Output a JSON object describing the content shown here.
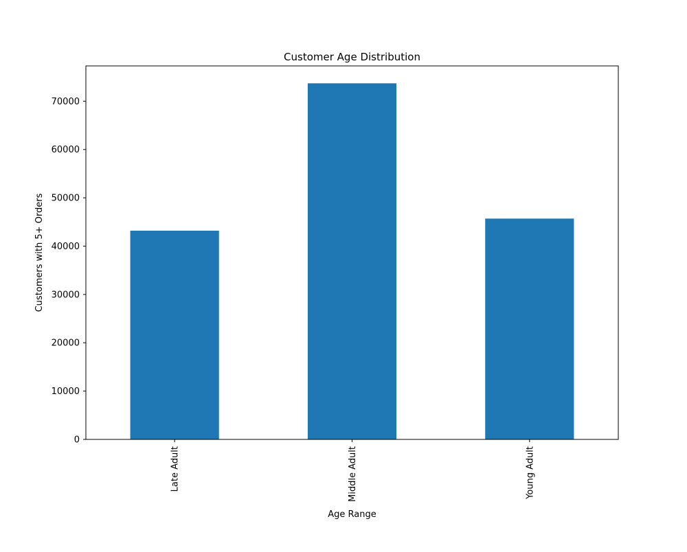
{
  "chart_data": {
    "type": "bar",
    "title": "Customer Age Distribution",
    "xlabel": "Age Range",
    "ylabel": "Customers with 5+ Orders",
    "categories": [
      "Late Adult",
      "Middle Adult",
      "Young Adult"
    ],
    "values": [
      43200,
      73700,
      45700
    ],
    "ylim": [
      0,
      77300
    ],
    "yticks": [
      0,
      10000,
      20000,
      30000,
      40000,
      50000,
      60000,
      70000
    ],
    "ytick_labels": [
      "0",
      "10000",
      "20000",
      "30000",
      "40000",
      "50000",
      "60000",
      "70000"
    ],
    "grid": false,
    "legend": "none",
    "bar_color": "#1f77b4"
  }
}
